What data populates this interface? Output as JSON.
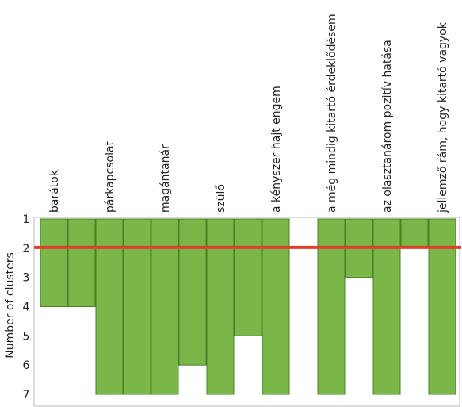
{
  "chart_data": {
    "type": "bar",
    "title": "",
    "xlabel": "",
    "ylabel": "Number of clusters",
    "yticks": [
      "1",
      "2",
      "3",
      "4",
      "5",
      "6",
      "7"
    ],
    "ylim": [
      1,
      7
    ],
    "columns": [
      {
        "label": "barátok",
        "extent": 4
      },
      {
        "label": "",
        "extent": 4
      },
      {
        "label": "párkapcsolat",
        "extent": 7
      },
      {
        "label": "",
        "extent": 7
      },
      {
        "label": "magántanár",
        "extent": 7
      },
      {
        "label": "",
        "extent": 6
      },
      {
        "label": "szülő",
        "extent": 7
      },
      {
        "label": "",
        "extent": 5
      },
      {
        "label": "a kényszer hajt engem",
        "extent": 7
      },
      {
        "label": "",
        "extent": 1
      },
      {
        "label": "a még mindig kitartó érdeklődésem",
        "extent": 7
      },
      {
        "label": "",
        "extent": 3
      },
      {
        "label": "az olasztanárom pozitív hatása",
        "extent": 7
      },
      {
        "label": "",
        "extent": 2
      },
      {
        "label": "jellemző rám, hogy kitartó vagyok",
        "extent": 7
      }
    ],
    "cut_line": 2,
    "grid": false,
    "legend": "none",
    "colors": {
      "bar_fill": "#7ab648",
      "bar_stroke": "#4a7f2a",
      "cut_line": "#e0402a",
      "frame": "#bbbbbb"
    }
  }
}
